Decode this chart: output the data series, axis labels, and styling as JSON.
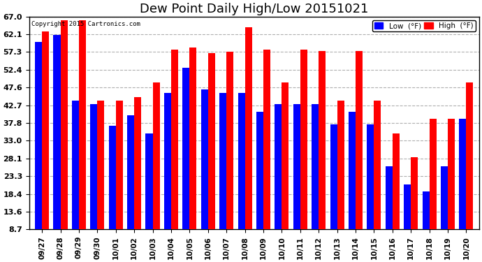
{
  "title": "Dew Point Daily High/Low 20151021",
  "copyright": "Copyright 2015 Cartronics.com",
  "dates": [
    "09/27",
    "09/28",
    "09/29",
    "09/30",
    "10/01",
    "10/02",
    "10/03",
    "10/04",
    "10/05",
    "10/06",
    "10/07",
    "10/08",
    "10/09",
    "10/10",
    "10/11",
    "10/12",
    "10/13",
    "10/14",
    "10/15",
    "10/16",
    "10/17",
    "10/18",
    "10/19",
    "10/20"
  ],
  "low_vals": [
    60.0,
    62.0,
    44.0,
    43.0,
    37.0,
    40.0,
    35.0,
    46.0,
    53.0,
    47.0,
    46.0,
    46.0,
    41.0,
    43.0,
    43.0,
    43.0,
    37.5,
    41.0,
    37.5,
    26.0,
    21.0,
    19.0,
    26.0,
    39.0
  ],
  "high_vals": [
    63.0,
    66.0,
    66.0,
    44.0,
    44.0,
    45.0,
    49.0,
    58.0,
    58.5,
    57.0,
    57.3,
    64.0,
    58.0,
    49.0,
    58.0,
    57.5,
    44.0,
    57.5,
    44.0,
    35.0,
    28.5,
    39.0,
    39.0,
    49.0
  ],
  "yticks": [
    8.7,
    13.6,
    18.4,
    23.3,
    28.1,
    33.0,
    37.8,
    42.7,
    47.6,
    52.4,
    57.3,
    62.1,
    67.0
  ],
  "ymin": 8.7,
  "ymax": 67.0,
  "low_color": "#0000ff",
  "high_color": "#ff0000",
  "bg_color": "#ffffff",
  "grid_color": "#b0b0b0",
  "title_fontsize": 13,
  "bar_width": 0.38,
  "legend_low_label": "Low  (°F)",
  "legend_high_label": "High  (°F)"
}
